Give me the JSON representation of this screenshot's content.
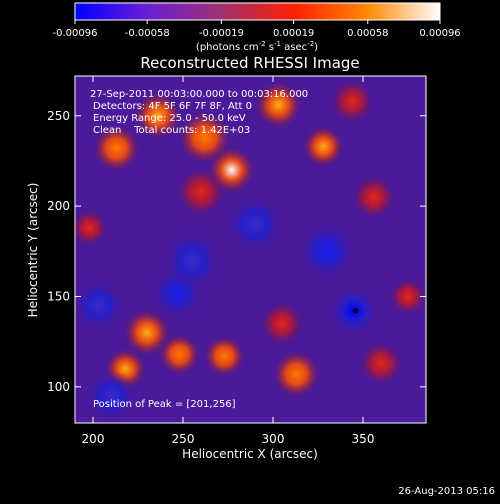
{
  "chart_data": {
    "type": "heatmap",
    "title": "Reconstructed RHESSI Image",
    "xlabel": "Heliocentric X (arcsec)",
    "ylabel": "Heliocentric Y (arcsec)",
    "xlim": [
      190,
      385
    ],
    "ylim": [
      80,
      272
    ],
    "x_ticks": [
      200,
      250,
      300,
      350
    ],
    "y_ticks": [
      100,
      150,
      200,
      250
    ],
    "colorbar": {
      "range": [
        -0.00096,
        0.00096
      ],
      "tick_labels": [
        "-0.00096",
        "-0.00058",
        "-0.00019",
        "0.00019",
        "0.00058",
        "0.00096"
      ],
      "tick_values": [
        -0.00096,
        -0.00058,
        -0.00019,
        0.00019,
        0.00058,
        0.00096
      ],
      "unit_base": "(photons cm",
      "unit_exp1": "-2",
      "unit_mid": " s",
      "unit_exp2": "-1",
      "unit_mid2": " asec",
      "unit_exp3": "-2",
      "unit_end": ")",
      "colormap": [
        "#0000ff",
        "#6a1fd6",
        "#a03070",
        "#ff2000",
        "#ff8800",
        "#ffffff"
      ]
    },
    "annotations": [
      "27-Sep-2011 00:03:00.000 to 00:03:16.000",
      "Detectors: 4F 5F 6F 7F 8F, Att 0",
      "Energy Range: 25.0 - 50.0 keV",
      "Clean    Total counts: 1.42E+03"
    ],
    "peak_label": "Position of Peak = [201,256]",
    "marker": {
      "x": 346,
      "y": 142
    },
    "sources": [
      {
        "x": 277,
        "y": 220,
        "v": 1.0,
        "s": 8
      },
      {
        "x": 262,
        "y": 238,
        "v": 0.7,
        "s": 9
      },
      {
        "x": 236,
        "y": 250,
        "v": 0.85,
        "s": 8
      },
      {
        "x": 213,
        "y": 232,
        "v": 0.75,
        "s": 8
      },
      {
        "x": 260,
        "y": 208,
        "v": 0.55,
        "s": 8
      },
      {
        "x": 303,
        "y": 256,
        "v": 0.8,
        "s": 8
      },
      {
        "x": 328,
        "y": 233,
        "v": 0.8,
        "s": 7
      },
      {
        "x": 356,
        "y": 205,
        "v": 0.6,
        "s": 7
      },
      {
        "x": 344,
        "y": 258,
        "v": 0.55,
        "s": 7
      },
      {
        "x": 230,
        "y": 130,
        "v": 0.9,
        "s": 8
      },
      {
        "x": 218,
        "y": 110,
        "v": 0.8,
        "s": 7
      },
      {
        "x": 248,
        "y": 118,
        "v": 0.65,
        "s": 7
      },
      {
        "x": 273,
        "y": 117,
        "v": 0.7,
        "s": 7
      },
      {
        "x": 313,
        "y": 107,
        "v": 0.75,
        "s": 8
      },
      {
        "x": 360,
        "y": 113,
        "v": 0.6,
        "s": 7
      },
      {
        "x": 305,
        "y": 135,
        "v": 0.5,
        "s": 7
      },
      {
        "x": 198,
        "y": 188,
        "v": 0.4,
        "s": 6
      },
      {
        "x": 375,
        "y": 150,
        "v": 0.35,
        "s": 6
      },
      {
        "x": 345,
        "y": 142,
        "v": -1.0,
        "s": 9
      },
      {
        "x": 330,
        "y": 175,
        "v": -0.6,
        "s": 10
      },
      {
        "x": 247,
        "y": 152,
        "v": -0.6,
        "s": 9
      },
      {
        "x": 203,
        "y": 145,
        "v": -0.5,
        "s": 9
      },
      {
        "x": 255,
        "y": 170,
        "v": -0.45,
        "s": 10
      },
      {
        "x": 290,
        "y": 190,
        "v": -0.3,
        "s": 10
      },
      {
        "x": 210,
        "y": 95,
        "v": -0.35,
        "s": 9
      }
    ]
  },
  "footer": {
    "date": "26-Aug-2013 05:16"
  }
}
